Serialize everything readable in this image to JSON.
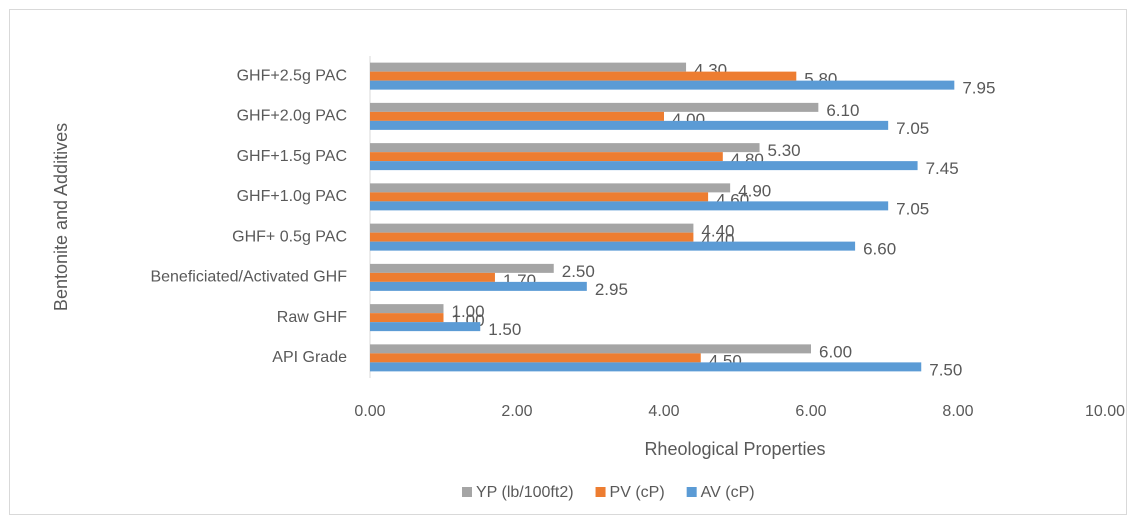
{
  "chart_data": {
    "type": "hbar",
    "x_label": "Rheological Properties",
    "y_label": "Bentonite and Additives",
    "categories": [
      "API Grade",
      "Raw GHF",
      "Beneficiated/Activated GHF",
      "GHF+ 0.5g PAC",
      "GHF+1.0g PAC",
      "GHF+1.5g PAC",
      "GHF+2.0g PAC",
      "GHF+2.5g PAC"
    ],
    "series": [
      {
        "name": "YP (lb/100ft2)",
        "color": "#a5a5a5",
        "values": [
          6.0,
          1.0,
          2.5,
          4.4,
          4.9,
          5.3,
          6.1,
          4.3
        ],
        "value_labels": [
          "6.00",
          "1.00",
          "2.50",
          "4.40",
          "4.90",
          "5.30",
          "6.10",
          "4.30"
        ]
      },
      {
        "name": "PV (cP)",
        "color": "#ed7d31",
        "values": [
          4.5,
          1.0,
          1.7,
          4.4,
          4.6,
          4.8,
          4.0,
          5.8
        ],
        "value_labels": [
          "4.50",
          "1.00",
          "1.70",
          "4.40",
          "4.60",
          "4.80",
          "4.00",
          "5.80"
        ]
      },
      {
        "name": "AV (cP)",
        "color": "#5b9bd5",
        "values": [
          7.5,
          1.5,
          2.95,
          6.6,
          7.05,
          7.45,
          7.05,
          7.95
        ],
        "value_labels": [
          "7.50",
          "1.50",
          "2.95",
          "6.60",
          "7.05",
          "7.45",
          "7.05",
          "7.95"
        ]
      }
    ],
    "xlim": [
      0,
      10
    ],
    "xticks": [
      {
        "value": 0,
        "label": "0.00"
      },
      {
        "value": 2,
        "label": "2.00"
      },
      {
        "value": 4,
        "label": "4.00"
      },
      {
        "value": 6,
        "label": "6.00"
      },
      {
        "value": 8,
        "label": "8.00"
      },
      {
        "value": 10,
        "label": "10.00"
      }
    ],
    "legend": "bottom"
  }
}
